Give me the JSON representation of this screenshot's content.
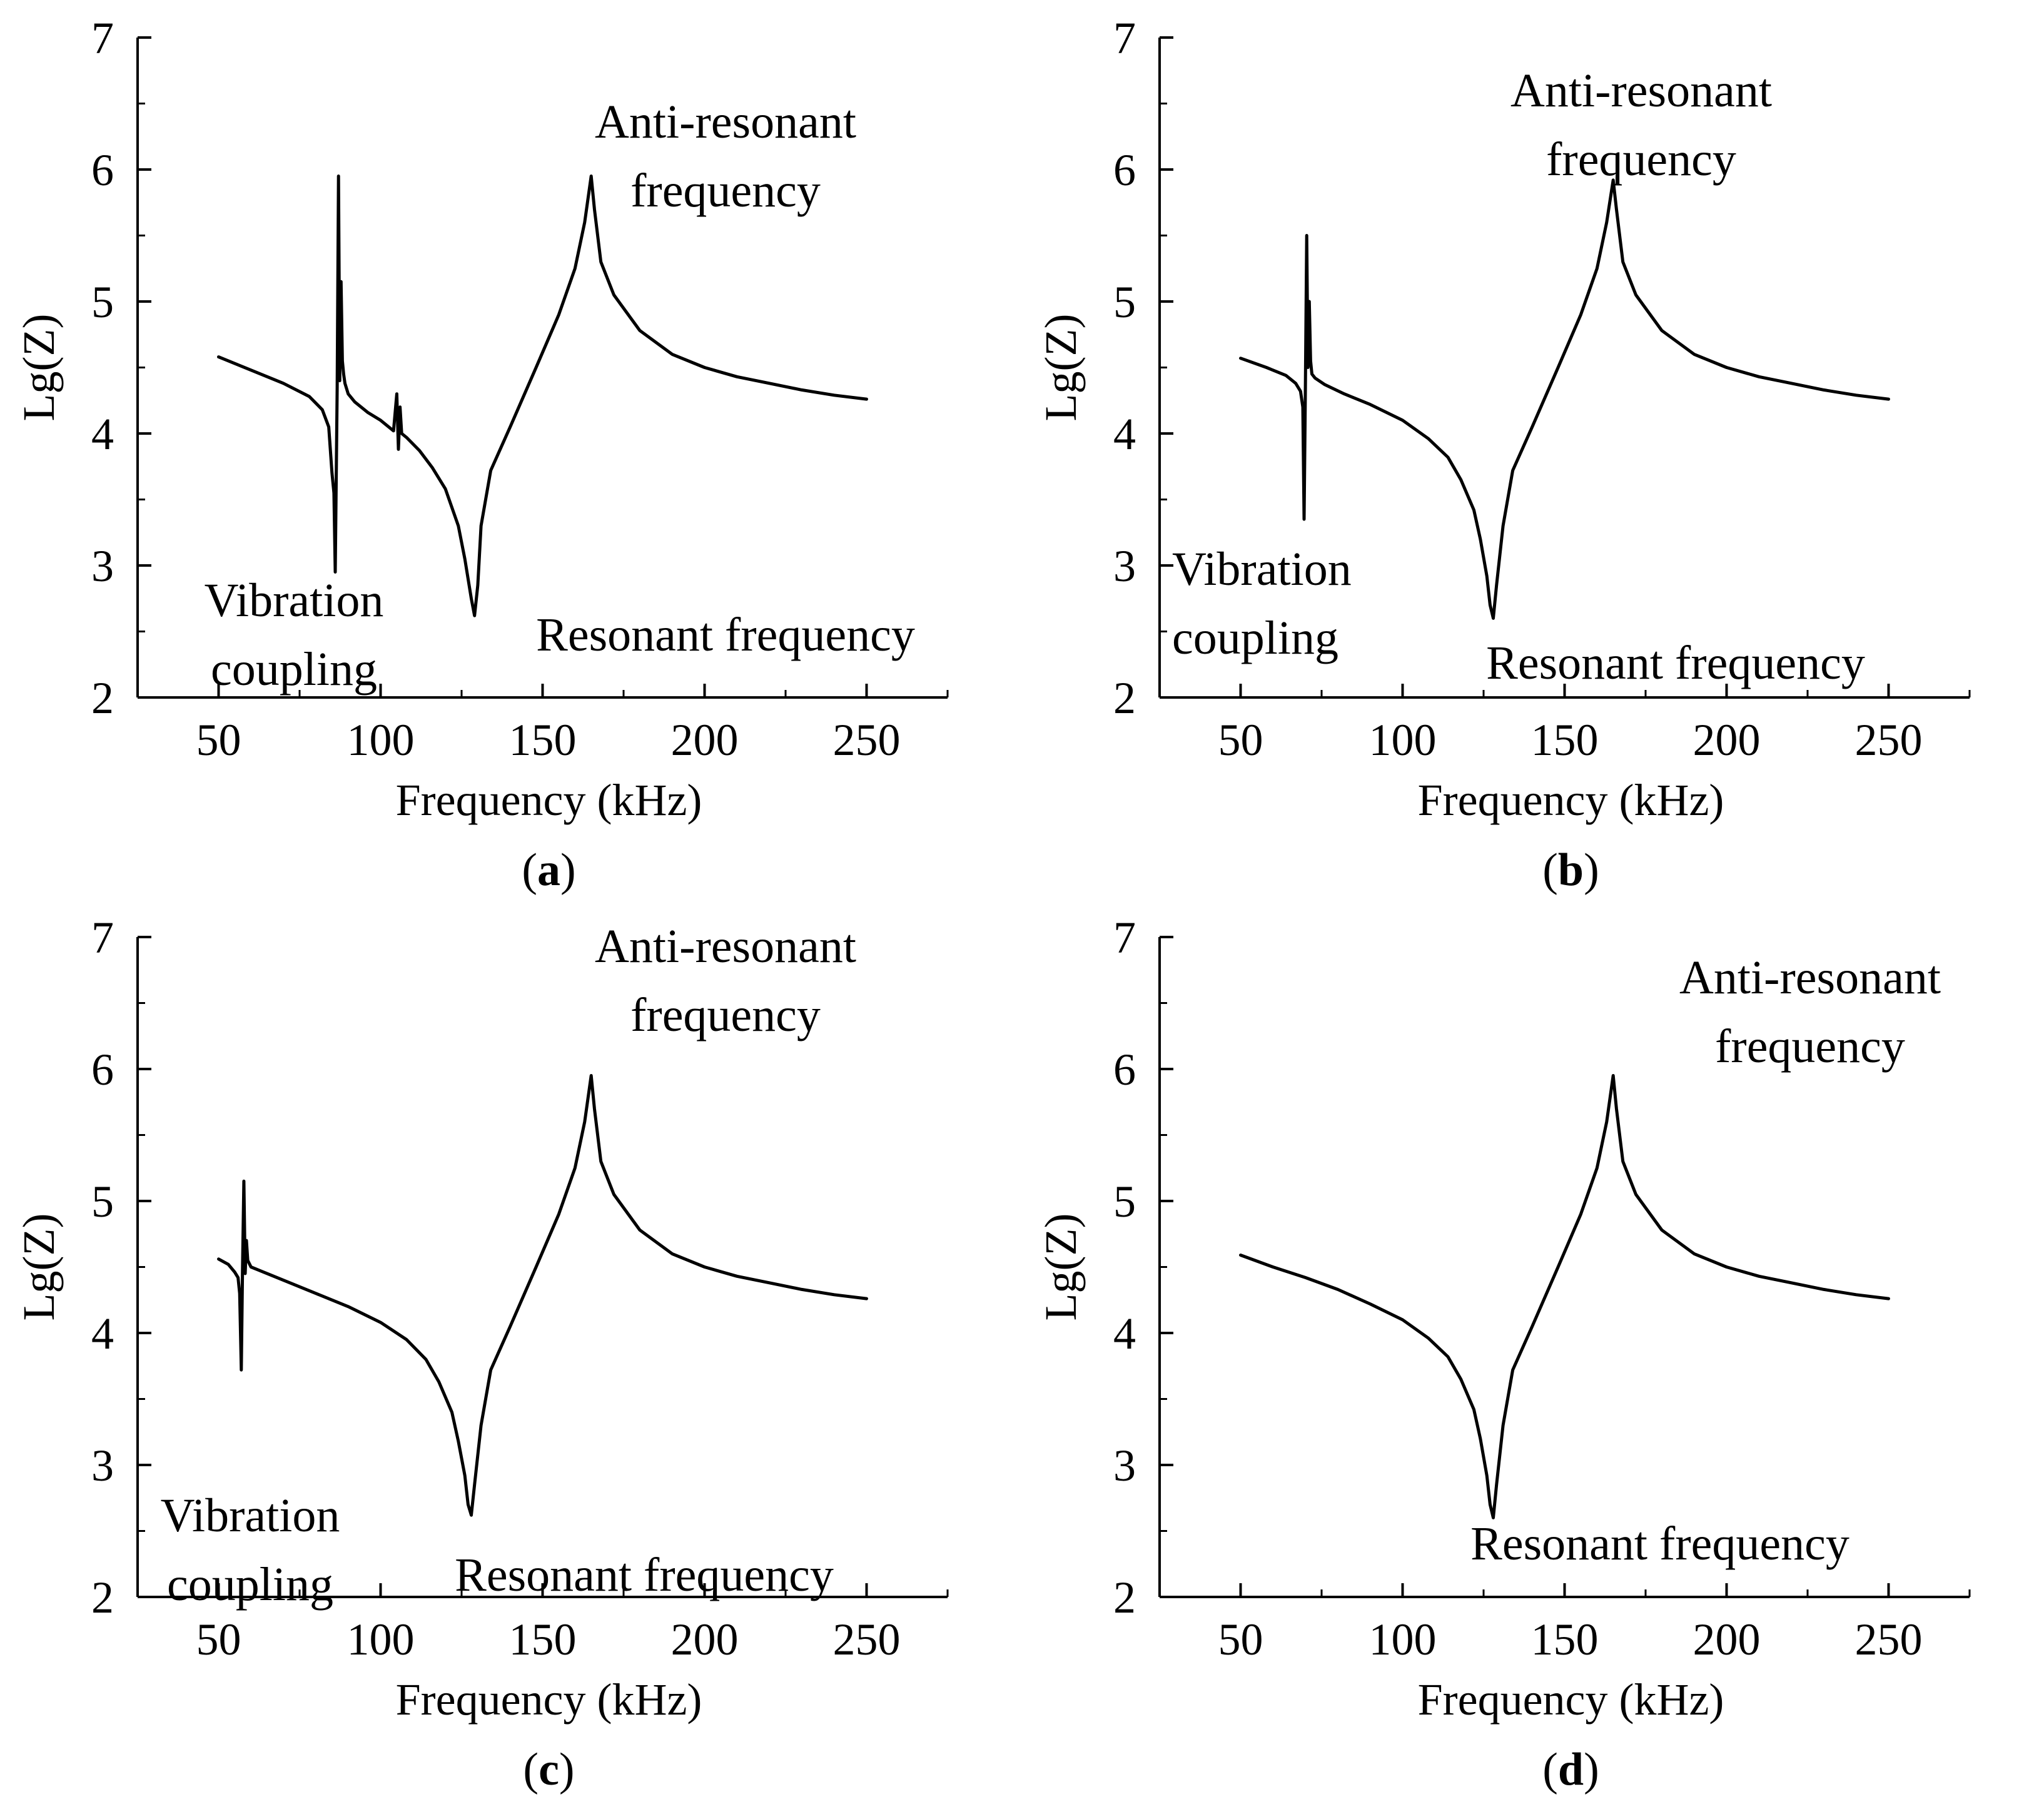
{
  "chart_data": [
    {
      "id": "a",
      "type": "line",
      "panel_label": "a",
      "xlabel": "Frequency (kHz)",
      "ylabel": "Lg(Z)",
      "xlim": [
        25,
        275
      ],
      "ylim": [
        2,
        7
      ],
      "xticks": [
        50,
        100,
        150,
        200,
        250
      ],
      "yticks": [
        2,
        3,
        4,
        5,
        6,
        7
      ],
      "annotations": {
        "coupling": [
          "Vibration",
          "coupling"
        ],
        "anti": [
          "Anti-resonant",
          "frequency"
        ],
        "resonant": "Resonant frequency"
      },
      "series": [
        {
          "name": "Lg(Z)",
          "x": [
            50,
            60,
            70,
            78,
            82,
            84,
            85,
            85.6,
            86,
            86.6,
            87,
            87.4,
            87.8,
            88.2,
            88.6,
            89,
            90,
            92,
            96,
            100,
            104,
            105,
            105.5,
            106,
            106.5,
            108,
            112,
            116,
            120,
            124,
            126,
            128,
            129,
            130,
            131,
            134,
            140,
            148,
            155,
            160,
            163,
            165,
            166,
            168,
            172,
            180,
            190,
            200,
            210,
            220,
            230,
            240,
            250
          ],
          "y": [
            4.58,
            4.48,
            4.38,
            4.28,
            4.18,
            4.05,
            3.7,
            3.55,
            2.95,
            4.35,
            5.95,
            4.4,
            5.15,
            4.55,
            4.45,
            4.38,
            4.3,
            4.24,
            4.16,
            4.1,
            4.02,
            4.3,
            3.88,
            4.2,
            4.0,
            3.97,
            3.87,
            3.74,
            3.58,
            3.3,
            3.05,
            2.75,
            2.62,
            2.85,
            3.3,
            3.72,
            4.05,
            4.5,
            4.9,
            5.25,
            5.6,
            5.95,
            5.7,
            5.3,
            5.05,
            4.78,
            4.6,
            4.5,
            4.43,
            4.38,
            4.33,
            4.29,
            4.26
          ]
        }
      ]
    },
    {
      "id": "b",
      "type": "line",
      "panel_label": "b",
      "xlabel": "Frequency (kHz)",
      "ylabel": "Lg(Z)",
      "xlim": [
        25,
        275
      ],
      "ylim": [
        2,
        7
      ],
      "xticks": [
        50,
        100,
        150,
        200,
        250
      ],
      "yticks": [
        2,
        3,
        4,
        5,
        6,
        7
      ],
      "annotations": {
        "coupling": [
          "Vibration",
          "coupling"
        ],
        "anti": [
          "Anti-resonant",
          "frequency"
        ],
        "resonant": "Resonant frequency"
      },
      "series": [
        {
          "name": "Lg(Z)",
          "x": [
            50,
            58,
            64,
            67,
            68.5,
            69.2,
            69.6,
            70,
            70.4,
            70.8,
            71.2,
            71.6,
            72,
            73,
            76,
            82,
            90,
            100,
            108,
            114,
            118,
            122,
            124,
            126,
            127,
            128,
            129,
            131,
            134,
            140,
            148,
            155,
            160,
            163,
            165,
            166,
            168,
            172,
            180,
            190,
            200,
            210,
            220,
            230,
            240,
            250
          ],
          "y": [
            4.57,
            4.5,
            4.44,
            4.38,
            4.32,
            4.2,
            3.35,
            4.35,
            5.5,
            4.5,
            5.0,
            4.55,
            4.45,
            4.42,
            4.37,
            4.3,
            4.22,
            4.1,
            3.96,
            3.82,
            3.65,
            3.42,
            3.2,
            2.92,
            2.7,
            2.6,
            2.85,
            3.3,
            3.72,
            4.05,
            4.5,
            4.9,
            5.25,
            5.6,
            5.92,
            5.7,
            5.3,
            5.05,
            4.78,
            4.6,
            4.5,
            4.43,
            4.38,
            4.33,
            4.29,
            4.26
          ]
        }
      ]
    },
    {
      "id": "c",
      "type": "line",
      "panel_label": "c",
      "xlabel": "Frequency (kHz)",
      "ylabel": "Lg(Z)",
      "xlim": [
        25,
        275
      ],
      "ylim": [
        2,
        7
      ],
      "xticks": [
        50,
        100,
        150,
        200,
        250
      ],
      "yticks": [
        2,
        3,
        4,
        5,
        6,
        7
      ],
      "annotations": {
        "coupling": [
          "Vibration",
          "coupling"
        ],
        "anti": [
          "Anti-resonant",
          "frequency"
        ],
        "resonant": "Resonant frequency"
      },
      "series": [
        {
          "name": "Lg(Z)",
          "x": [
            50,
            53,
            55,
            56,
            56.5,
            57,
            57.4,
            57.8,
            58.2,
            58.6,
            59,
            60,
            64,
            72,
            80,
            90,
            100,
            108,
            114,
            118,
            122,
            124,
            126,
            127,
            128,
            129,
            131,
            134,
            140,
            148,
            155,
            160,
            163,
            165,
            166,
            168,
            172,
            180,
            190,
            200,
            210,
            220,
            230,
            240,
            250
          ],
          "y": [
            4.56,
            4.52,
            4.46,
            4.42,
            4.3,
            3.72,
            4.5,
            5.15,
            4.45,
            4.7,
            4.55,
            4.5,
            4.46,
            4.38,
            4.3,
            4.2,
            4.08,
            3.95,
            3.8,
            3.63,
            3.4,
            3.18,
            2.92,
            2.7,
            2.62,
            2.85,
            3.3,
            3.72,
            4.05,
            4.5,
            4.9,
            5.25,
            5.6,
            5.95,
            5.7,
            5.3,
            5.05,
            4.78,
            4.6,
            4.5,
            4.43,
            4.38,
            4.33,
            4.29,
            4.26
          ]
        }
      ]
    },
    {
      "id": "d",
      "type": "line",
      "panel_label": "d",
      "xlabel": "Frequency (kHz)",
      "ylabel": "Lg(Z)",
      "xlim": [
        25,
        275
      ],
      "ylim": [
        2,
        7
      ],
      "xticks": [
        50,
        100,
        150,
        200,
        250
      ],
      "yticks": [
        2,
        3,
        4,
        5,
        6,
        7
      ],
      "annotations": {
        "anti": [
          "Anti-resonant",
          "frequency"
        ],
        "resonant": "Resonant frequency"
      },
      "series": [
        {
          "name": "Lg(Z)",
          "x": [
            50,
            60,
            70,
            80,
            90,
            100,
            108,
            114,
            118,
            122,
            124,
            126,
            127,
            128,
            129,
            131,
            134,
            140,
            148,
            155,
            160,
            163,
            165,
            166,
            168,
            172,
            180,
            190,
            200,
            210,
            220,
            230,
            240,
            250
          ],
          "y": [
            4.59,
            4.5,
            4.42,
            4.33,
            4.22,
            4.1,
            3.96,
            3.82,
            3.65,
            3.42,
            3.2,
            2.92,
            2.7,
            2.6,
            2.85,
            3.3,
            3.72,
            4.05,
            4.5,
            4.9,
            5.25,
            5.6,
            5.95,
            5.7,
            5.3,
            5.05,
            4.78,
            4.6,
            4.5,
            4.43,
            4.38,
            4.33,
            4.29,
            4.26
          ]
        }
      ]
    }
  ]
}
